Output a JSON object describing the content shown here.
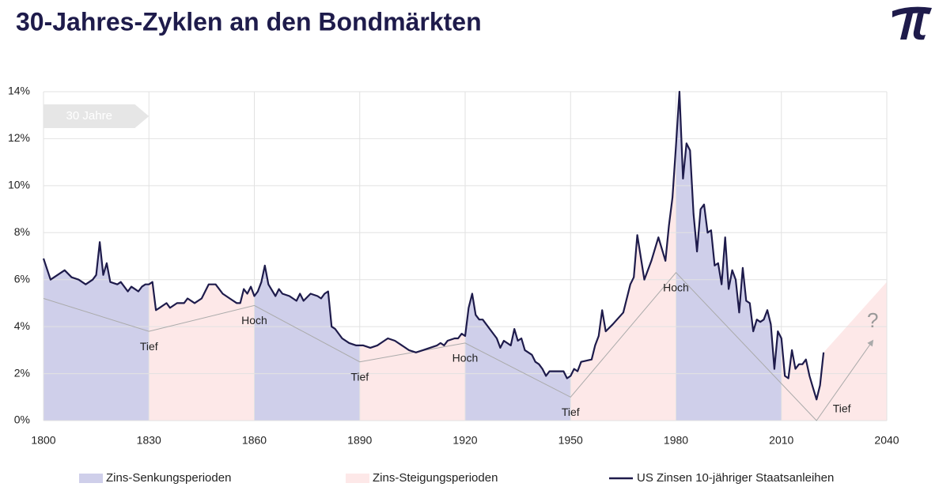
{
  "chart_data": {
    "type": "line",
    "title": "30-Jahres-Zyklen an den Bondmärkten",
    "span_label": "30 Jahre",
    "question_mark": "?",
    "xlim": [
      1800,
      2040
    ],
    "xticks": [
      1800,
      1830,
      1860,
      1890,
      1920,
      1950,
      1980,
      2010,
      2040
    ],
    "ylim": [
      0,
      14
    ],
    "yticks": [
      {
        "value": 0,
        "label": "0%"
      },
      {
        "value": 2,
        "label": "2%"
      },
      {
        "value": 4,
        "label": "4%"
      },
      {
        "value": 6,
        "label": "6%"
      },
      {
        "value": 8,
        "label": "8%"
      },
      {
        "value": 10,
        "label": "10%"
      },
      {
        "value": 12,
        "label": "12%"
      },
      {
        "value": 14,
        "label": "14%"
      }
    ],
    "grid": true,
    "series": [
      {
        "name": "US Zinsen 10-jähriger Staatsanleihen",
        "color": "#1e1b4b",
        "x": [
          1800,
          1802,
          1805,
          1806,
          1808,
          1810,
          1812,
          1814,
          1815,
          1816,
          1817,
          1818,
          1819,
          1821,
          1822,
          1824,
          1825,
          1826,
          1827,
          1828,
          1829,
          1830,
          1831,
          1832,
          1833,
          1835,
          1836,
          1838,
          1840,
          1841,
          1843,
          1845,
          1847,
          1849,
          1851,
          1853,
          1855,
          1856,
          1857,
          1858,
          1859,
          1860,
          1861,
          1862,
          1863,
          1864,
          1866,
          1867,
          1868,
          1870,
          1872,
          1873,
          1874,
          1876,
          1878,
          1879,
          1880,
          1881,
          1882,
          1883,
          1885,
          1887,
          1889,
          1891,
          1893,
          1895,
          1897,
          1898,
          1900,
          1902,
          1904,
          1906,
          1908,
          1910,
          1912,
          1913,
          1914,
          1915,
          1917,
          1918,
          1919,
          1920,
          1921,
          1922,
          1923,
          1924,
          1925,
          1927,
          1929,
          1930,
          1931,
          1933,
          1934,
          1935,
          1936,
          1937,
          1939,
          1940,
          1941,
          1942,
          1943,
          1944,
          1946,
          1948,
          1949,
          1950,
          1951,
          1952,
          1953,
          1956,
          1957,
          1958,
          1959,
          1960,
          1962,
          1965,
          1967,
          1968,
          1969,
          1971,
          1973,
          1975,
          1977,
          1978,
          1979,
          1980,
          1981,
          1982,
          1983,
          1984,
          1985,
          1986,
          1987,
          1988,
          1989,
          1990,
          1991,
          1992,
          1993,
          1994,
          1995,
          1996,
          1997,
          1998,
          1999,
          2000,
          2001,
          2002,
          2003,
          2004,
          2005,
          2006,
          2007,
          2008,
          2009,
          2010,
          2011,
          2012,
          2013,
          2014,
          2015,
          2016,
          2017,
          2018,
          2019,
          2020,
          2021,
          2022
        ],
        "values": [
          6.9,
          6.0,
          6.3,
          6.4,
          6.1,
          6.0,
          5.8,
          6.0,
          6.2,
          7.6,
          6.2,
          6.7,
          5.9,
          5.8,
          5.9,
          5.5,
          5.7,
          5.6,
          5.5,
          5.7,
          5.8,
          5.8,
          5.9,
          4.7,
          4.8,
          5.0,
          4.8,
          5.0,
          5.0,
          5.2,
          5.0,
          5.2,
          5.8,
          5.8,
          5.4,
          5.2,
          5.0,
          5.0,
          5.6,
          5.4,
          5.7,
          5.3,
          5.5,
          5.9,
          6.6,
          5.8,
          5.3,
          5.6,
          5.4,
          5.3,
          5.1,
          5.4,
          5.1,
          5.4,
          5.3,
          5.2,
          5.4,
          5.5,
          4.0,
          3.9,
          3.5,
          3.3,
          3.2,
          3.2,
          3.1,
          3.2,
          3.4,
          3.5,
          3.4,
          3.2,
          3.0,
          2.9,
          3.0,
          3.1,
          3.2,
          3.3,
          3.2,
          3.4,
          3.5,
          3.5,
          3.7,
          3.6,
          4.8,
          5.4,
          4.5,
          4.3,
          4.3,
          3.9,
          3.5,
          3.1,
          3.4,
          3.2,
          3.9,
          3.4,
          3.5,
          3.0,
          2.8,
          2.5,
          2.4,
          2.2,
          1.9,
          2.1,
          2.1,
          2.1,
          1.8,
          1.9,
          2.2,
          2.1,
          2.5,
          2.6,
          3.2,
          3.6,
          4.7,
          3.8,
          4.1,
          4.6,
          5.8,
          6.1,
          7.9,
          6.0,
          6.8,
          7.8,
          6.8,
          8.3,
          9.5,
          11.7,
          14.0,
          10.3,
          11.8,
          11.5,
          8.8,
          7.2,
          9.0,
          9.2,
          8.0,
          8.1,
          6.6,
          6.7,
          5.8,
          7.8,
          5.6,
          6.4,
          6.0,
          4.6,
          6.5,
          5.1,
          5.0,
          3.8,
          4.3,
          4.2,
          4.3,
          4.7,
          4.1,
          2.2,
          3.8,
          3.5,
          1.9,
          1.8,
          3.0,
          2.2,
          2.4,
          2.4,
          2.6,
          1.9,
          1.4,
          0.9,
          1.5,
          2.9
        ]
      }
    ],
    "periods": [
      {
        "name": "Zins-Senkungsperioden",
        "color": "#cfcfea",
        "ranges": [
          [
            1800,
            1830
          ],
          [
            1860,
            1890
          ],
          [
            1920,
            1950
          ],
          [
            1980,
            2010
          ]
        ]
      },
      {
        "name": "Zins-Steigungsperioden",
        "color": "#fde8e8",
        "ranges": [
          [
            1830,
            1860
          ],
          [
            1890,
            1920
          ],
          [
            1950,
            1980
          ],
          [
            2010,
            2040
          ]
        ]
      }
    ],
    "outlook": {
      "x": [
        2020,
        2040
      ],
      "values": [
        0,
        5.9
      ]
    },
    "trend": {
      "color": "#aaaaaa",
      "x": [
        1800,
        1830,
        1860,
        1890,
        1920,
        1950,
        1980,
        2020,
        2036
      ],
      "values": [
        5.2,
        3.8,
        4.9,
        2.5,
        3.3,
        1.0,
        6.3,
        0.0,
        3.4
      ],
      "labels": [
        null,
        "Tief",
        "Hoch",
        "Tief",
        "Hoch",
        "Tief",
        "Hoch",
        "Tief",
        null
      ]
    }
  }
}
